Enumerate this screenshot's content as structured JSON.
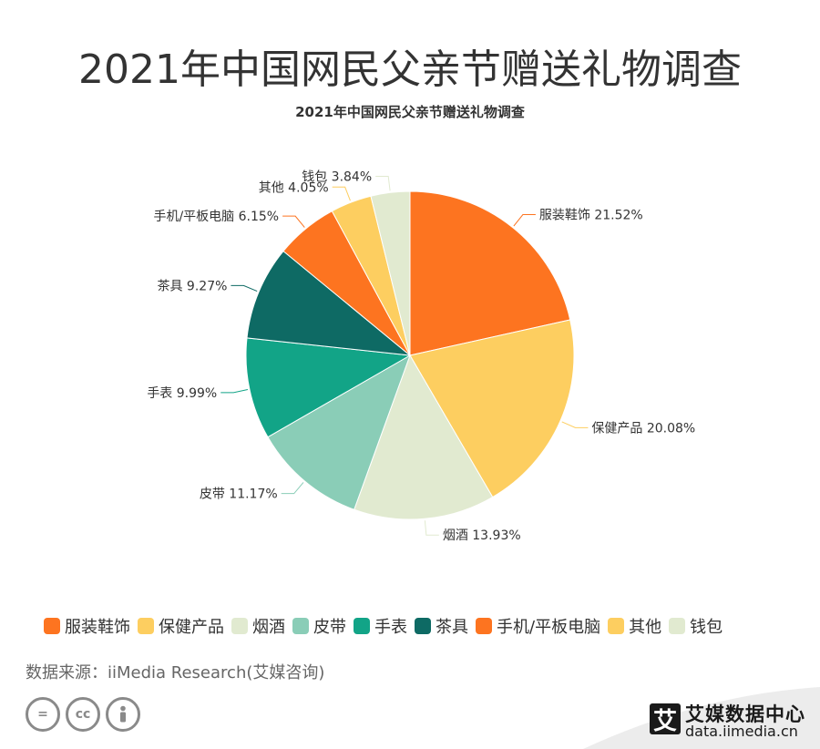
{
  "title": "2021年中国网民父亲节赠送礼物调查",
  "chart_data": {
    "type": "pie",
    "title": "2021年中国网民父亲节赠送礼物调查",
    "slices": [
      {
        "name": "服装鞋饰",
        "value": 21.52,
        "label": "服装鞋饰 21.52%",
        "color": "#FD7420"
      },
      {
        "name": "保健产品",
        "value": 20.08,
        "label": "保健产品 20.08%",
        "color": "#FDCE60"
      },
      {
        "name": "烟酒",
        "value": 13.93,
        "label": "烟酒 13.93%",
        "color": "#E1EAD0"
      },
      {
        "name": "皮带",
        "value": 11.17,
        "label": "皮带 11.17%",
        "color": "#8ACDB7"
      },
      {
        "name": "手表",
        "value": 9.99,
        "label": "手表 9.99%",
        "color": "#12A487"
      },
      {
        "name": "茶具",
        "value": 9.27,
        "label": "茶具 9.27%",
        "color": "#0E6A64"
      },
      {
        "name": "手机/平板电脑",
        "value": 6.15,
        "label": "手机/平板电脑 6.15%",
        "color": "#FD7420"
      },
      {
        "name": "其他",
        "value": 4.05,
        "label": "其他 4.05%",
        "color": "#FDCE60"
      },
      {
        "name": "钱包",
        "value": 3.84,
        "label": "钱包 3.84%",
        "color": "#E1EAD0"
      }
    ],
    "legend_position": "bottom"
  },
  "source": "数据来源：iiMedia Research(艾媒咨询)",
  "license_icons": [
    "=",
    "cc",
    "person-icon"
  ],
  "brand": {
    "logo_char": "艾",
    "name": "艾媒数据中心",
    "url": "data.iimedia.cn"
  }
}
